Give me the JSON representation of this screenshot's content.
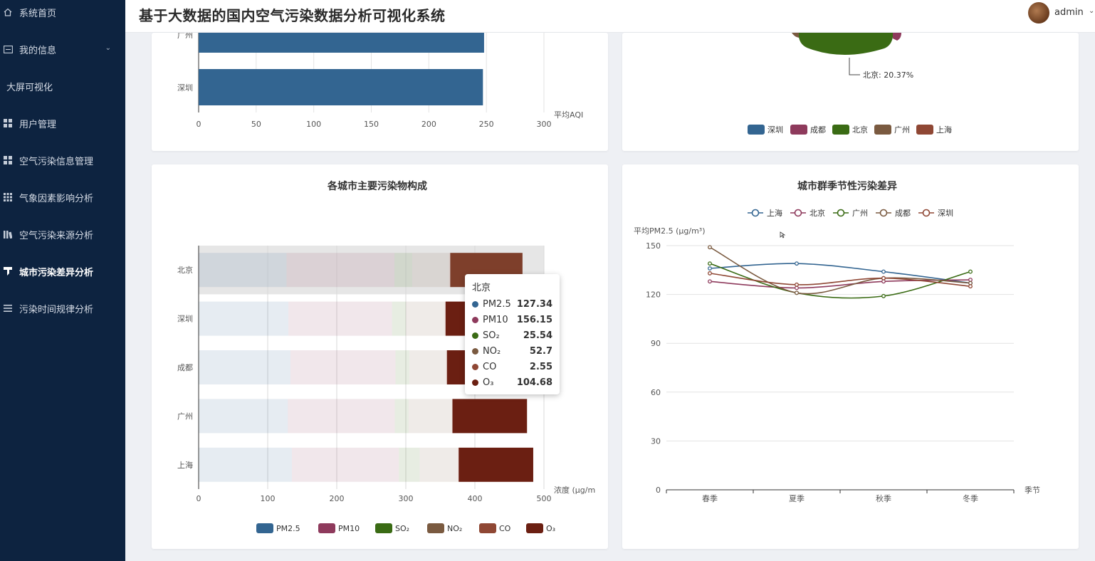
{
  "header": {
    "title": "基于大数据的国内空气污染数据分析可视化系统",
    "user": "admin",
    "user_chevron": "⌄"
  },
  "sidebar": {
    "items": [
      {
        "label": "系统首页",
        "icon": "home-icon"
      },
      {
        "label": "我的信息",
        "icon": "card-icon"
      },
      {
        "label": "大屏可视化",
        "icon": ""
      },
      {
        "label": "用户管理",
        "icon": "grid-icon"
      },
      {
        "label": "空气污染信息管理",
        "icon": "grid-icon"
      },
      {
        "label": "气象因素影响分析",
        "icon": "apps-icon"
      },
      {
        "label": "空气污染来源分析",
        "icon": "bars-icon"
      },
      {
        "label": "城市污染差异分析",
        "icon": "filter-icon"
      },
      {
        "label": "污染时间规律分析",
        "icon": "menu-icon"
      }
    ],
    "expand_chevron": "⌄"
  },
  "colors": {
    "shenzhen": "#336591",
    "chengdu": "#8e3a5c",
    "beijing": "#3a6b14",
    "guangzhou": "#7a5a40",
    "shanghai": "#8f4734",
    "o3": "#6b1f12"
  },
  "aqi_chart": {
    "chart_data": {
      "type": "bar",
      "orientation": "horizontal",
      "categories": [
        "广州",
        "深圳"
      ],
      "values": [
        248,
        247
      ],
      "x_ticks": [
        "0",
        "50",
        "100",
        "150",
        "200",
        "250",
        "300"
      ],
      "xlabel": "平均AQI",
      "xlim": [
        0,
        300
      ]
    }
  },
  "pie_chart": {
    "chart_data": {
      "type": "pie",
      "label": "北京: 20.37%",
      "legend": [
        "深圳",
        "成都",
        "北京",
        "广州",
        "上海"
      ]
    }
  },
  "pollutant_chart": {
    "title": "各城市主要污染物构成",
    "chart_data": {
      "type": "bar",
      "stacked": true,
      "orientation": "horizontal",
      "categories": [
        "北京",
        "深圳",
        "成都",
        "广州",
        "上海"
      ],
      "series": [
        {
          "name": "PM2.5",
          "values": [
            127.34,
            130,
            133,
            129,
            135
          ]
        },
        {
          "name": "PM10",
          "values": [
            156.15,
            150,
            152,
            155,
            155
          ]
        },
        {
          "name": "SO₂",
          "values": [
            25.54,
            20,
            20,
            20,
            30
          ]
        },
        {
          "name": "NO₂",
          "values": [
            52.7,
            55,
            52,
            61,
            54
          ]
        },
        {
          "name": "CO",
          "values": [
            2.55,
            2.5,
            2.5,
            2.5,
            2.5
          ]
        },
        {
          "name": "O₃",
          "values": [
            104.68,
            100,
            110,
            108,
            108
          ]
        }
      ],
      "x_ticks": [
        "0",
        "100",
        "200",
        "300",
        "400",
        "500"
      ],
      "xlabel": "浓度 (μg/m",
      "xlim": [
        0,
        500
      ],
      "legend": "bottom"
    },
    "tooltip": {
      "title": "北京",
      "rows": [
        {
          "name": "PM2.5",
          "value": "127.34"
        },
        {
          "name": "PM10",
          "value": "156.15"
        },
        {
          "name": "SO₂",
          "value": "25.54"
        },
        {
          "name": "NO₂",
          "value": "52.7"
        },
        {
          "name": "CO",
          "value": "2.55"
        },
        {
          "name": "O₃",
          "value": "104.68"
        }
      ]
    }
  },
  "season_chart": {
    "title": "城市群季节性污染差异",
    "chart_data": {
      "type": "line",
      "smooth": true,
      "x": [
        "春季",
        "夏季",
        "秋季",
        "冬季"
      ],
      "series": [
        {
          "name": "上海",
          "values": [
            136,
            139,
            134,
            127
          ]
        },
        {
          "name": "北京",
          "values": [
            128,
            124,
            128,
            129
          ]
        },
        {
          "name": "广州",
          "values": [
            139,
            121,
            119,
            134
          ]
        },
        {
          "name": "成都",
          "values": [
            149,
            121,
            130,
            127
          ]
        },
        {
          "name": "深圳",
          "values": [
            133,
            126,
            130,
            125
          ]
        }
      ],
      "y_ticks": [
        "0",
        "30",
        "60",
        "90",
        "120",
        "150"
      ],
      "ylim": [
        0,
        150
      ],
      "ylabel": "平均PM2.5 (μg/m³)",
      "xlabel": "季节",
      "legend": "top"
    }
  }
}
